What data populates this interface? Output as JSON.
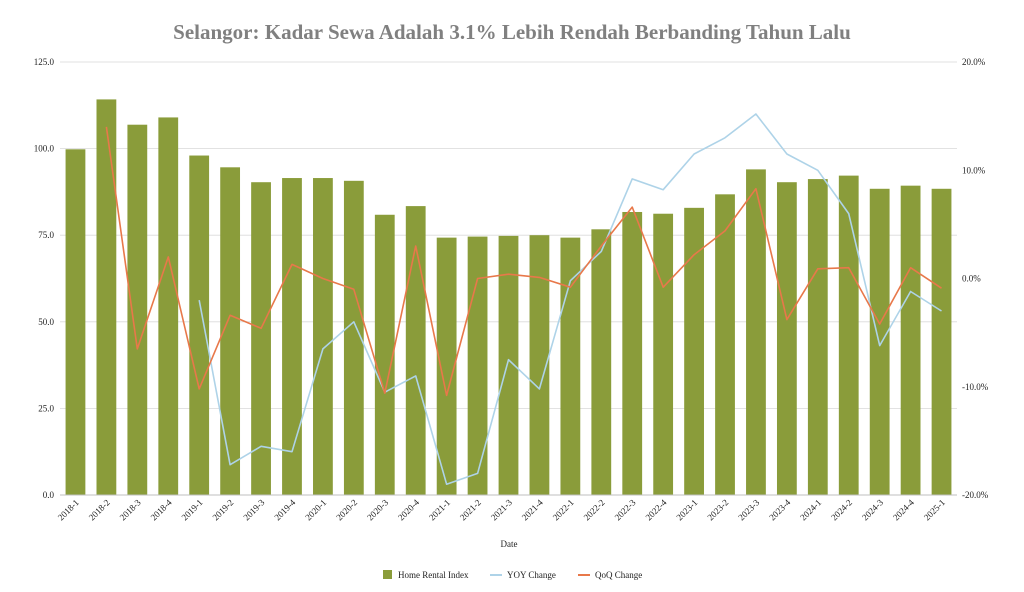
{
  "chart_data": {
    "type": "bar",
    "title": "Selangor: Kadar Sewa Adalah 3.1% Lebih Rendah Berbanding Tahun Lalu",
    "xlabel": "Date",
    "ylabel": "",
    "ylim": [
      0,
      125
    ],
    "y2lim": [
      -20,
      20
    ],
    "y_ticks": [
      "0.0",
      "25.0",
      "50.0",
      "75.0",
      "100.0",
      "125.0"
    ],
    "y2_ticks": [
      "-20.0%",
      "-10.0%",
      "0.0%",
      "10.0%",
      "20.0%"
    ],
    "grid": true,
    "legend_position": "bottom",
    "categories": [
      "2018-1",
      "2018-2",
      "2018-3",
      "2018-4",
      "2019-1",
      "2019-2",
      "2019-3",
      "2019-4",
      "2020-1",
      "2020-2",
      "2020-3",
      "2020-4",
      "2021-1",
      "2021-2",
      "2021-3",
      "2021-4",
      "2022-1",
      "2022-2",
      "2022-3",
      "2022-4",
      "2023-1",
      "2023-2",
      "2023-3",
      "2023-4",
      "2024-1",
      "2024-2",
      "2024-3",
      "2024-4",
      "2025-1"
    ],
    "series": [
      {
        "name": "Home Rental Index",
        "type": "bar",
        "axis": "left",
        "color": "#8a9c3a",
        "values": [
          99.8,
          114.2,
          106.9,
          109.0,
          98.0,
          94.6,
          90.3,
          91.5,
          91.5,
          90.7,
          80.9,
          83.4,
          74.3,
          74.6,
          74.8,
          75.0,
          74.3,
          76.7,
          81.7,
          81.2,
          82.9,
          86.8,
          94.0,
          90.3,
          91.2,
          92.2,
          88.4,
          89.3,
          88.4
        ]
      },
      {
        "name": "YOY Change",
        "type": "line",
        "axis": "right",
        "color": "#aed3e8",
        "values": [
          null,
          null,
          null,
          null,
          -2.0,
          -17.2,
          -15.5,
          -16.0,
          -6.5,
          -4.0,
          -10.5,
          -9.0,
          -19.0,
          -18.0,
          -7.5,
          -10.2,
          -0.2,
          2.5,
          9.2,
          8.2,
          11.5,
          13.0,
          15.2,
          11.5,
          10.0,
          6.0,
          -6.2,
          -1.2,
          -3.0
        ]
      },
      {
        "name": "QoQ Change",
        "type": "line",
        "axis": "right",
        "color": "#e8784a",
        "values": [
          null,
          14.0,
          -6.5,
          2.0,
          -10.2,
          -3.4,
          -4.6,
          1.3,
          0.0,
          -1.0,
          -10.6,
          3.0,
          -10.8,
          0.0,
          0.4,
          0.1,
          -0.8,
          3.0,
          6.6,
          -0.8,
          2.2,
          4.4,
          8.3,
          -3.8,
          0.9,
          1.0,
          -4.2,
          1.0,
          -0.9
        ]
      }
    ]
  }
}
